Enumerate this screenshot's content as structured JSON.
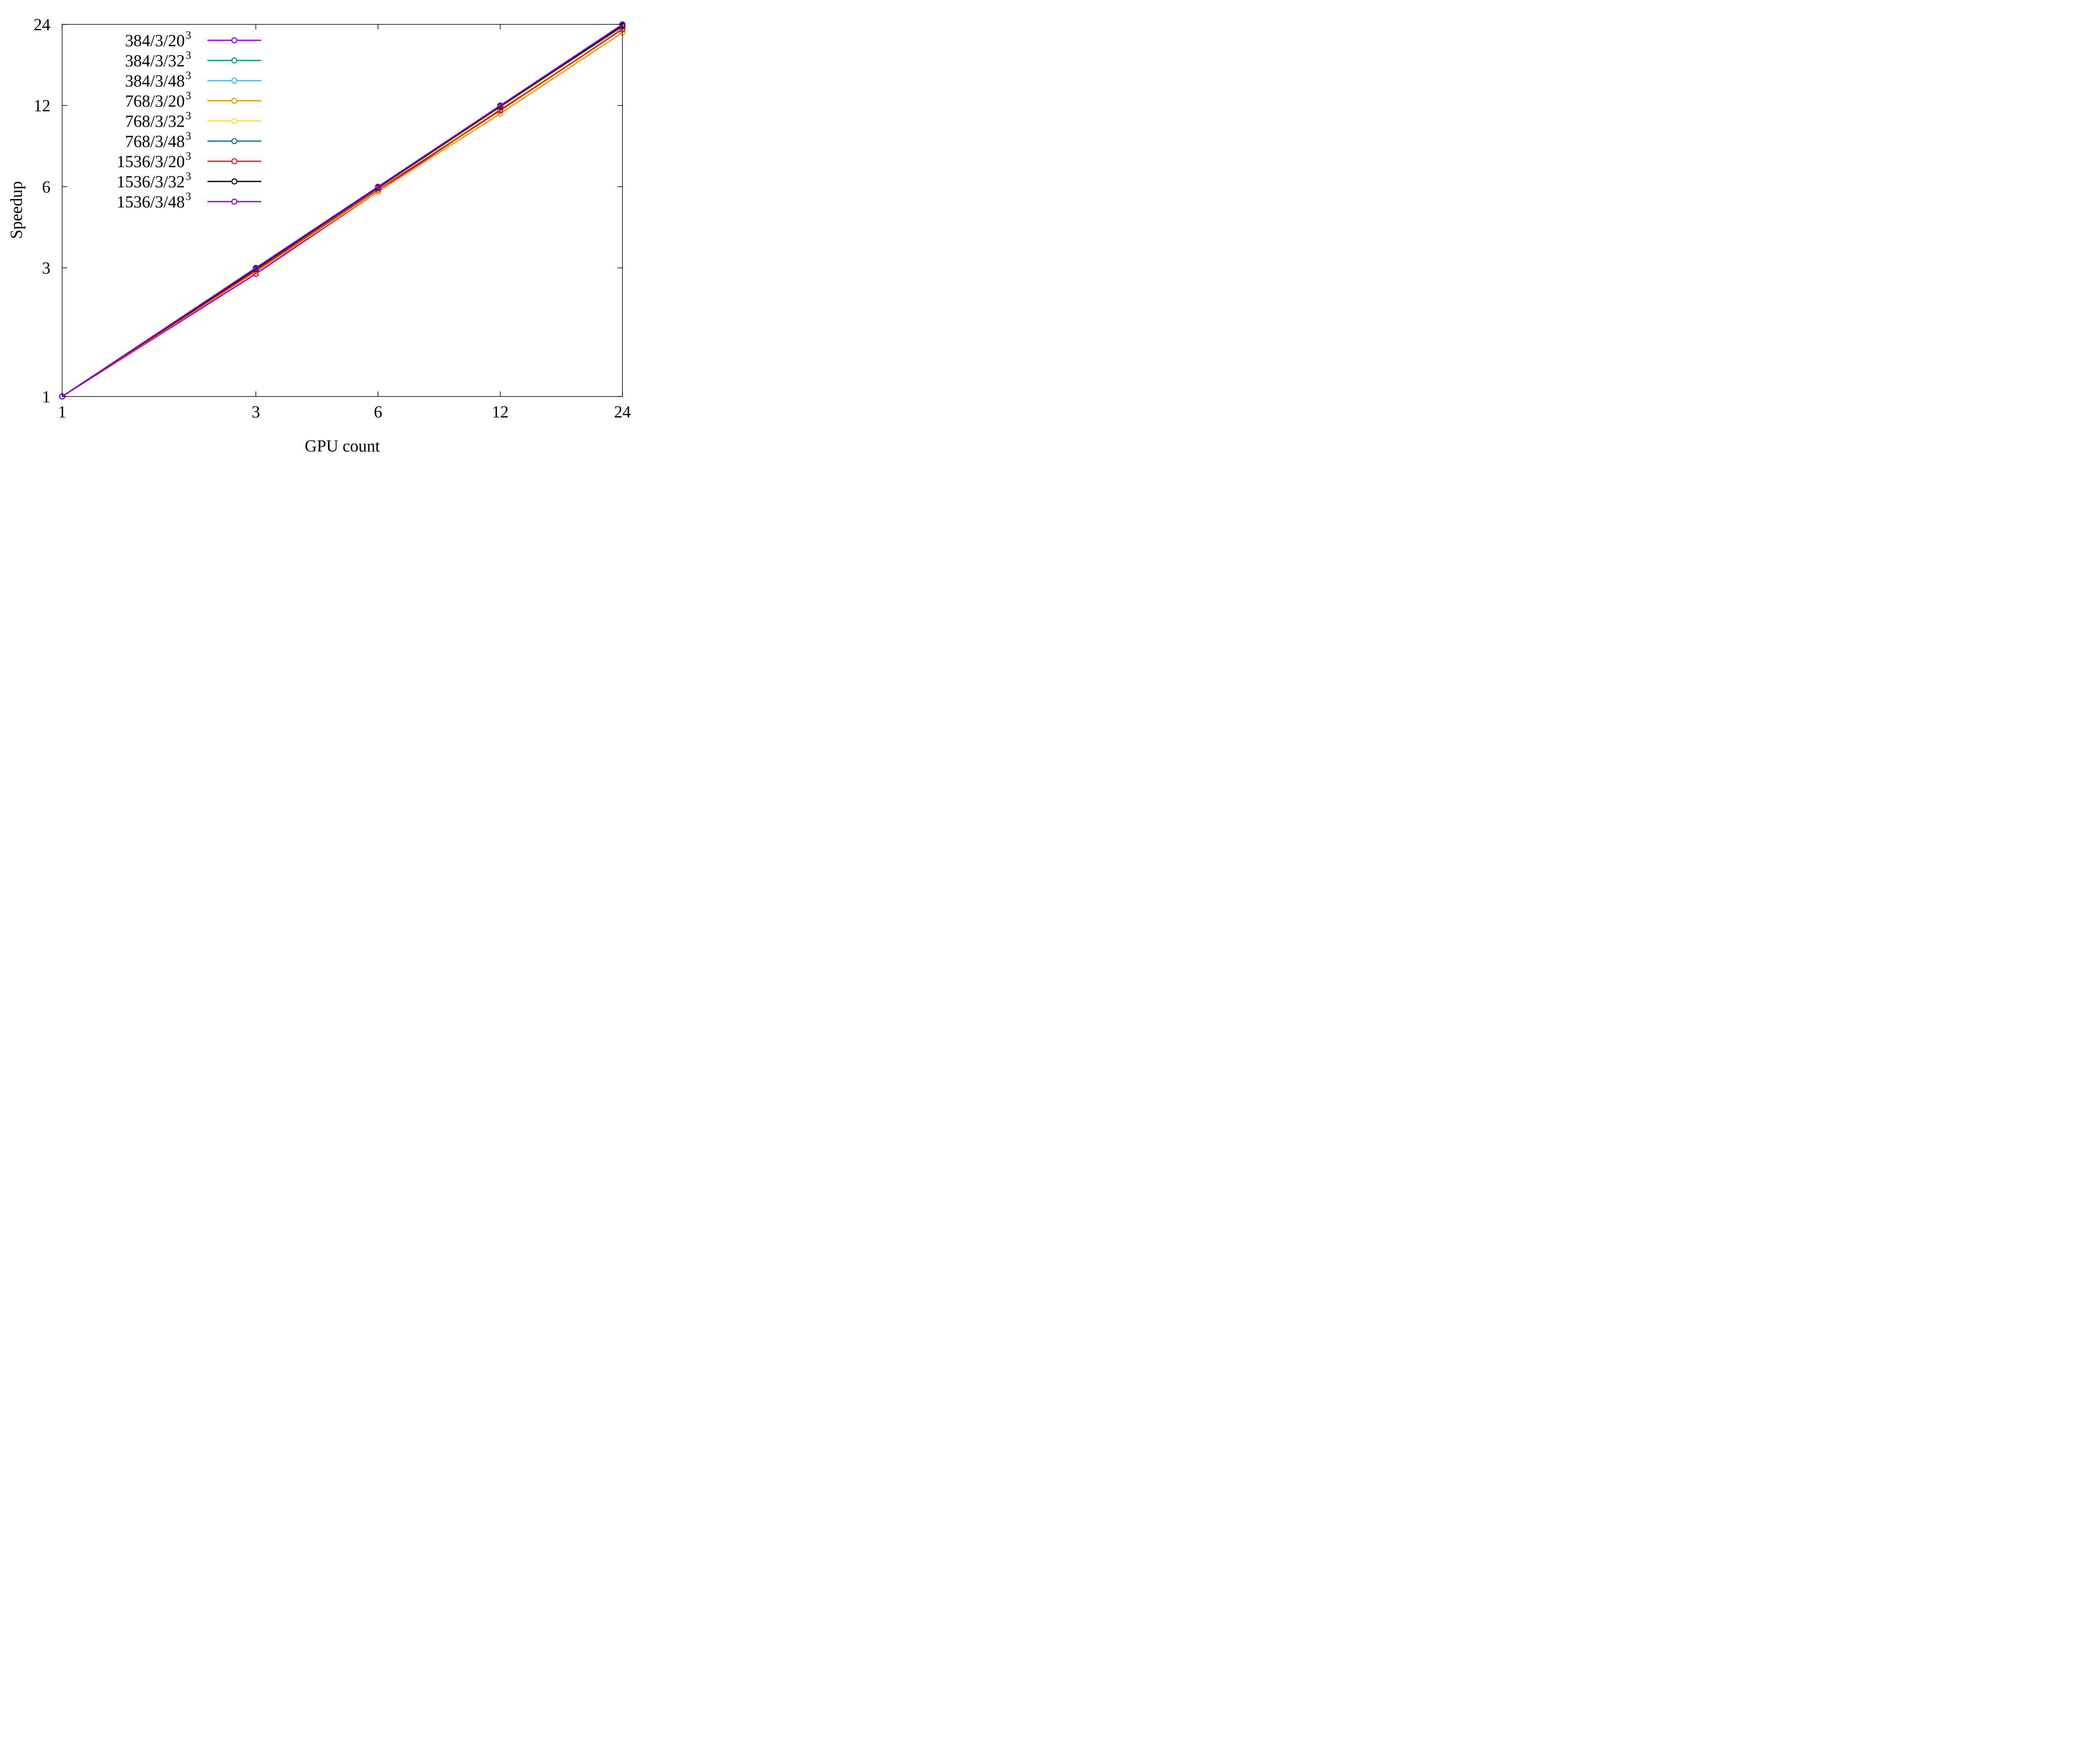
{
  "chart_data": {
    "type": "line",
    "xlabel": "GPU count",
    "ylabel": "Speedup",
    "xscale": "log",
    "yscale": "log",
    "xlim": [
      1,
      24
    ],
    "ylim": [
      1,
      24
    ],
    "xticks": [
      1,
      3,
      6,
      12,
      24
    ],
    "yticks": [
      1,
      3,
      6,
      12,
      24
    ],
    "xtick_labels": [
      "1",
      "3",
      "6",
      "12",
      "24"
    ],
    "ytick_labels": [
      "1",
      "3",
      "6",
      "12",
      "24"
    ],
    "grid": false,
    "legend_position": "top-left",
    "x": [
      1,
      3,
      6,
      12,
      24
    ],
    "series": [
      {
        "name_base": "384/3/20",
        "name_sup": "3",
        "color": "#9400d3",
        "values": [
          1,
          2.85,
          5.75,
          11.6,
          23.2
        ]
      },
      {
        "name_base": "384/3/32",
        "name_sup": "3",
        "color": "#009e73",
        "values": [
          1,
          2.96,
          5.95,
          11.9,
          23.6
        ]
      },
      {
        "name_base": "384/3/48",
        "name_sup": "3",
        "color": "#56b4e9",
        "values": [
          1,
          2.97,
          5.96,
          11.92,
          23.7
        ]
      },
      {
        "name_base": "768/3/20",
        "name_sup": "3",
        "color": "#e69f00",
        "values": [
          1,
          2.9,
          5.75,
          11.2,
          22.4
        ]
      },
      {
        "name_base": "768/3/32",
        "name_sup": "3",
        "color": "#f0e442",
        "values": [
          1,
          2.95,
          5.9,
          11.7,
          23.1
        ]
      },
      {
        "name_base": "768/3/48",
        "name_sup": "3",
        "color": "#0072b2",
        "values": [
          1,
          2.98,
          5.98,
          11.95,
          23.8
        ]
      },
      {
        "name_base": "1536/3/20",
        "name_sup": "3",
        "color": "#e51e10",
        "values": [
          1,
          2.93,
          5.85,
          11.5,
          23.0
        ]
      },
      {
        "name_base": "1536/3/32",
        "name_sup": "3",
        "color": "#000000",
        "values": [
          1,
          2.97,
          5.95,
          11.9,
          23.7
        ]
      },
      {
        "name_base": "1536/3/48",
        "name_sup": "3",
        "color": "#9400d3",
        "values": [
          1,
          3.0,
          6.0,
          12.0,
          24.0
        ]
      }
    ]
  }
}
